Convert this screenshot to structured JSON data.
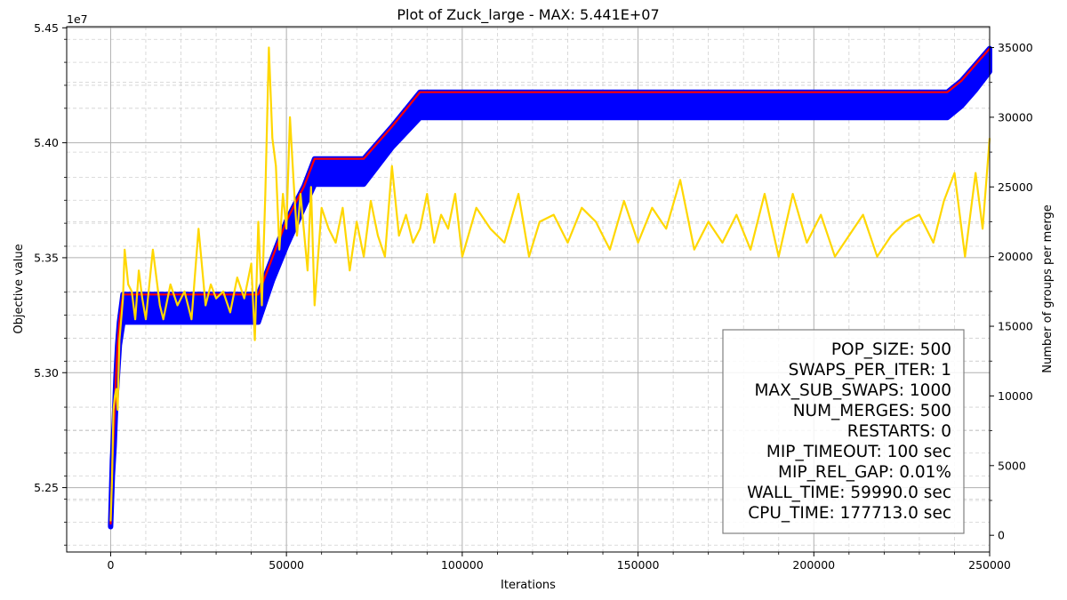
{
  "chart_data": {
    "type": "line",
    "title": "Plot of Zuck_large - MAX: 5.441E+07",
    "xlabel": "Iterations",
    "ylabel": "Objective value",
    "y2label": "Number of groups per merge",
    "y_exponent_label": "1e7",
    "xlim": [
      -12500,
      250000
    ],
    "ylim": [
      5.222,
      5.4505
    ],
    "y2lim": [
      -1200,
      36500
    ],
    "x_ticks": [
      0,
      50000,
      100000,
      150000,
      200000,
      250000
    ],
    "x_tick_labels": [
      "0",
      "50000",
      "100000",
      "150000",
      "200000",
      "250000"
    ],
    "y_ticks": [
      5.25,
      5.3,
      5.35,
      5.4,
      5.45
    ],
    "y_tick_labels": [
      "5.25",
      "5.30",
      "5.35",
      "5.40",
      "5.45"
    ],
    "y2_ticks": [
      0,
      5000,
      10000,
      15000,
      20000,
      25000,
      30000,
      35000
    ],
    "y2_tick_labels": [
      "0",
      "5000",
      "10000",
      "15000",
      "20000",
      "25000",
      "30000",
      "35000"
    ],
    "grid": true,
    "colors": {
      "population": "#0000ff",
      "best": "#ff0000",
      "groups": "#ffd700",
      "major_grid": "#b0b0b0",
      "minor_grid": "#d0d0d0"
    },
    "best_series": {
      "x": [
        0,
        500,
        1000,
        1500,
        2000,
        2500,
        3500,
        42000,
        46000,
        50000,
        55000,
        58000,
        72000,
        80000,
        88000,
        238000,
        242000,
        246000,
        250000
      ],
      "y": [
        5.234,
        5.262,
        5.278,
        5.298,
        5.312,
        5.322,
        5.334,
        5.334,
        5.35,
        5.366,
        5.381,
        5.393,
        5.393,
        5.407,
        5.422,
        5.422,
        5.427,
        5.434,
        5.441
      ]
    },
    "population_band": {
      "x": [
        0,
        500,
        1000,
        1500,
        2000,
        2500,
        3500,
        42000,
        46000,
        50000,
        55000,
        58000,
        72000,
        80000,
        88000,
        238000,
        242000,
        246000,
        250000
      ],
      "lower": [
        5.233,
        5.255,
        5.268,
        5.288,
        5.3,
        5.312,
        5.322,
        5.322,
        5.34,
        5.355,
        5.372,
        5.382,
        5.382,
        5.398,
        5.411,
        5.411,
        5.416,
        5.423,
        5.431
      ]
    },
    "groups_series": {
      "x": [
        0,
        400,
        800,
        1200,
        1600,
        2000,
        2500,
        3000,
        3500,
        4000,
        5000,
        6000,
        7000,
        8000,
        9000,
        10000,
        12000,
        14000,
        15000,
        17000,
        19000,
        21000,
        23000,
        25000,
        27000,
        28500,
        30000,
        32000,
        34000,
        36000,
        38000,
        40000,
        41000,
        42000,
        43000,
        44000,
        45000,
        46000,
        47000,
        48000,
        49000,
        50000,
        51000,
        52000,
        53000,
        54000,
        56000,
        57000,
        58000,
        60000,
        62000,
        64000,
        66000,
        68000,
        70000,
        72000,
        74000,
        76000,
        78000,
        80000,
        82000,
        84000,
        86000,
        88000,
        90000,
        92000,
        94000,
        96000,
        98000,
        100000,
        104000,
        108000,
        112000,
        116000,
        119000,
        122000,
        126000,
        130000,
        134000,
        138000,
        142000,
        146000,
        150000,
        154000,
        158000,
        162000,
        166000,
        170000,
        174000,
        178000,
        182000,
        186000,
        190000,
        194000,
        198000,
        202000,
        206000,
        210000,
        214000,
        218000,
        222000,
        226000,
        230000,
        234000,
        237000,
        240000,
        243000,
        246000,
        248000,
        250000
      ],
      "y": [
        1000,
        4000,
        9000,
        10000,
        10500,
        9000,
        14000,
        15500,
        17000,
        20500,
        18000,
        17500,
        15500,
        19000,
        17000,
        15500,
        20500,
        16500,
        15500,
        18000,
        16500,
        17500,
        15500,
        22000,
        16500,
        18000,
        17000,
        17500,
        16000,
        18500,
        17000,
        19500,
        14000,
        22500,
        16500,
        24500,
        35000,
        28500,
        26500,
        20500,
        24500,
        22000,
        30000,
        25500,
        21500,
        24500,
        19000,
        25000,
        16500,
        23500,
        22000,
        21000,
        23500,
        19000,
        22500,
        20000,
        24000,
        21500,
        20000,
        26500,
        21500,
        23000,
        21000,
        22000,
        24500,
        21000,
        23000,
        22000,
        24500,
        20000,
        23500,
        22000,
        21000,
        24500,
        20000,
        22500,
        23000,
        21000,
        23500,
        22500,
        20500,
        24000,
        21000,
        23500,
        22000,
        25500,
        20500,
        22500,
        21000,
        23000,
        20500,
        24500,
        20000,
        24500,
        21000,
        23000,
        20000,
        21500,
        23000,
        20000,
        21500,
        22500,
        23000,
        21000,
        24000,
        26000,
        20000,
        26000,
        22000,
        28500
      ]
    },
    "info_box": [
      "POP_SIZE: 500",
      "SWAPS_PER_ITER: 1",
      "MAX_SUB_SWAPS: 1000",
      "NUM_MERGES: 500",
      "RESTARTS: 0",
      "MIP_TIMEOUT: 100 sec",
      "MIP_REL_GAP: 0.01%",
      "WALL_TIME: 59990.0 sec",
      "CPU_TIME: 177713.0 sec"
    ]
  }
}
